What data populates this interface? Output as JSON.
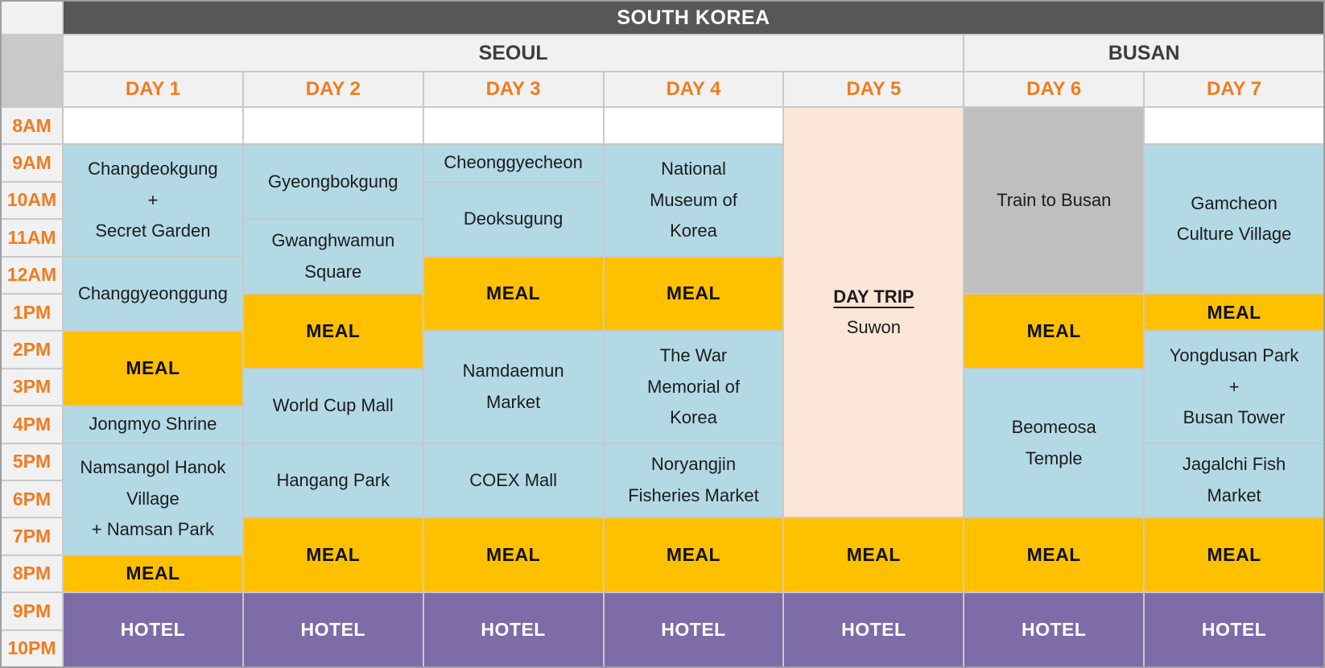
{
  "header": {
    "country": "SOUTH KOREA",
    "regions": [
      {
        "label": "SEOUL",
        "days": "DAY 1 - DAY 5"
      },
      {
        "label": "BUSAN",
        "days": "DAY 6 - DAY 7"
      }
    ],
    "days": [
      "DAY 1",
      "DAY 2",
      "DAY 3",
      "DAY 4",
      "DAY 5",
      "DAY 6",
      "DAY 7"
    ]
  },
  "time_labels": [
    "8AM",
    "9AM",
    "10AM",
    "11AM",
    "12AM",
    "1PM",
    "2PM",
    "3PM",
    "4PM",
    "5PM",
    "6PM",
    "7PM",
    "8PM",
    "9PM",
    "10PM"
  ],
  "colors": {
    "header_dark": "#575757",
    "header_light": "#f1f1f1",
    "accent_orange": "#f07c1e",
    "activity_blue": "#b3d9e5",
    "meal_yellow": "#ffc000",
    "hotel_purple": "#7e6ca8",
    "daytrip_peach": "#fbe5d6",
    "transit_gray": "#bfbfbf"
  },
  "columns": [
    {
      "header": "DAY 1",
      "blocks": [
        {
          "type": "free",
          "text": "",
          "start": "8AM",
          "end": "8AM"
        },
        {
          "type": "activity",
          "text": "Changdeokgung\n+\nSecret Garden",
          "start": "9AM",
          "end": "11AM"
        },
        {
          "type": "activity",
          "text": "Changgyeonggung",
          "start": "12AM",
          "end": "1PM"
        },
        {
          "type": "meal",
          "text": "MEAL",
          "start": "2PM",
          "end": "3PM"
        },
        {
          "type": "activity",
          "text": "Jongmyo Shrine",
          "start": "4PM",
          "end": "4PM"
        },
        {
          "type": "activity",
          "text": "Namsangol Hanok\nVillage\n+ Namsan Park",
          "start": "5PM",
          "end": "7PM"
        },
        {
          "type": "meal",
          "text": "MEAL",
          "start": "8PM",
          "end": "8PM"
        },
        {
          "type": "hotel",
          "text": "HOTEL",
          "start": "9PM",
          "end": "10PM"
        }
      ]
    },
    {
      "header": "DAY 2",
      "blocks": [
        {
          "type": "free",
          "text": "",
          "start": "8AM",
          "end": "8AM"
        },
        {
          "type": "activity",
          "text": "Gyeongbokgung",
          "start": "9AM",
          "end": "10AM"
        },
        {
          "type": "activity",
          "text": "Gwanghwamun\nSquare",
          "start": "11AM",
          "end": "12AM"
        },
        {
          "type": "meal",
          "text": "MEAL",
          "start": "1PM",
          "end": "2PM"
        },
        {
          "type": "activity",
          "text": "World Cup Mall",
          "start": "3PM",
          "end": "4PM"
        },
        {
          "type": "activity",
          "text": "Hangang Park",
          "start": "5PM",
          "end": "6PM"
        },
        {
          "type": "meal",
          "text": "MEAL",
          "start": "7PM",
          "end": "8PM"
        },
        {
          "type": "hotel",
          "text": "HOTEL",
          "start": "9PM",
          "end": "10PM"
        }
      ]
    },
    {
      "header": "DAY 3",
      "blocks": [
        {
          "type": "free",
          "text": "",
          "start": "8AM",
          "end": "8AM"
        },
        {
          "type": "activity",
          "text": "Cheonggyecheon",
          "start": "9AM",
          "end": "9AM"
        },
        {
          "type": "activity",
          "text": "Deoksugung",
          "start": "10AM",
          "end": "11AM"
        },
        {
          "type": "meal",
          "text": "MEAL",
          "start": "12AM",
          "end": "1PM"
        },
        {
          "type": "activity",
          "text": "Namdaemun\nMarket",
          "start": "2PM",
          "end": "4PM"
        },
        {
          "type": "activity",
          "text": "COEX Mall",
          "start": "5PM",
          "end": "6PM"
        },
        {
          "type": "meal",
          "text": "MEAL",
          "start": "7PM",
          "end": "8PM"
        },
        {
          "type": "hotel",
          "text": "HOTEL",
          "start": "9PM",
          "end": "10PM"
        }
      ]
    },
    {
      "header": "DAY 4",
      "blocks": [
        {
          "type": "free",
          "text": "",
          "start": "8AM",
          "end": "8AM"
        },
        {
          "type": "activity",
          "text": "National\nMuseum of\nKorea",
          "start": "9AM",
          "end": "11AM"
        },
        {
          "type": "meal",
          "text": "MEAL",
          "start": "12AM",
          "end": "1PM"
        },
        {
          "type": "activity",
          "text": "The War\nMemorial of\nKorea",
          "start": "2PM",
          "end": "4PM"
        },
        {
          "type": "activity",
          "text": "Noryangjin\nFisheries Market",
          "start": "5PM",
          "end": "6PM"
        },
        {
          "type": "meal",
          "text": "MEAL",
          "start": "7PM",
          "end": "8PM"
        },
        {
          "type": "hotel",
          "text": "HOTEL",
          "start": "9PM",
          "end": "10PM"
        }
      ]
    },
    {
      "header": "DAY 5",
      "blocks": [
        {
          "type": "daytrip",
          "title": "DAY TRIP",
          "subtitle": "Suwon",
          "start": "8AM",
          "end": "6PM"
        },
        {
          "type": "meal",
          "text": "MEAL",
          "start": "7PM",
          "end": "8PM"
        },
        {
          "type": "hotel",
          "text": "HOTEL",
          "start": "9PM",
          "end": "10PM"
        }
      ]
    },
    {
      "header": "DAY 6",
      "blocks": [
        {
          "type": "transit",
          "text": "Train to Busan",
          "start": "8AM",
          "end": "12AM"
        },
        {
          "type": "meal",
          "text": "MEAL",
          "start": "1PM",
          "end": "2PM"
        },
        {
          "type": "activity",
          "text": "Beomeosa\nTemple",
          "start": "3PM",
          "end": "6PM"
        },
        {
          "type": "meal",
          "text": "MEAL",
          "start": "7PM",
          "end": "8PM"
        },
        {
          "type": "hotel",
          "text": "HOTEL",
          "start": "9PM",
          "end": "10PM"
        }
      ]
    },
    {
      "header": "DAY 7",
      "blocks": [
        {
          "type": "free",
          "text": "",
          "start": "8AM",
          "end": "8AM"
        },
        {
          "type": "activity",
          "text": "Gamcheon\nCulture Village",
          "start": "9AM",
          "end": "12AM"
        },
        {
          "type": "meal",
          "text": "MEAL",
          "start": "1PM",
          "end": "1PM"
        },
        {
          "type": "activity",
          "text": "Yongdusan Park\n+\nBusan Tower",
          "start": "2PM",
          "end": "4PM"
        },
        {
          "type": "activity",
          "text": "Jagalchi Fish\nMarket",
          "start": "5PM",
          "end": "6PM"
        },
        {
          "type": "meal",
          "text": "MEAL",
          "start": "7PM",
          "end": "8PM"
        },
        {
          "type": "hotel",
          "text": "HOTEL",
          "start": "9PM",
          "end": "10PM"
        }
      ]
    }
  ]
}
